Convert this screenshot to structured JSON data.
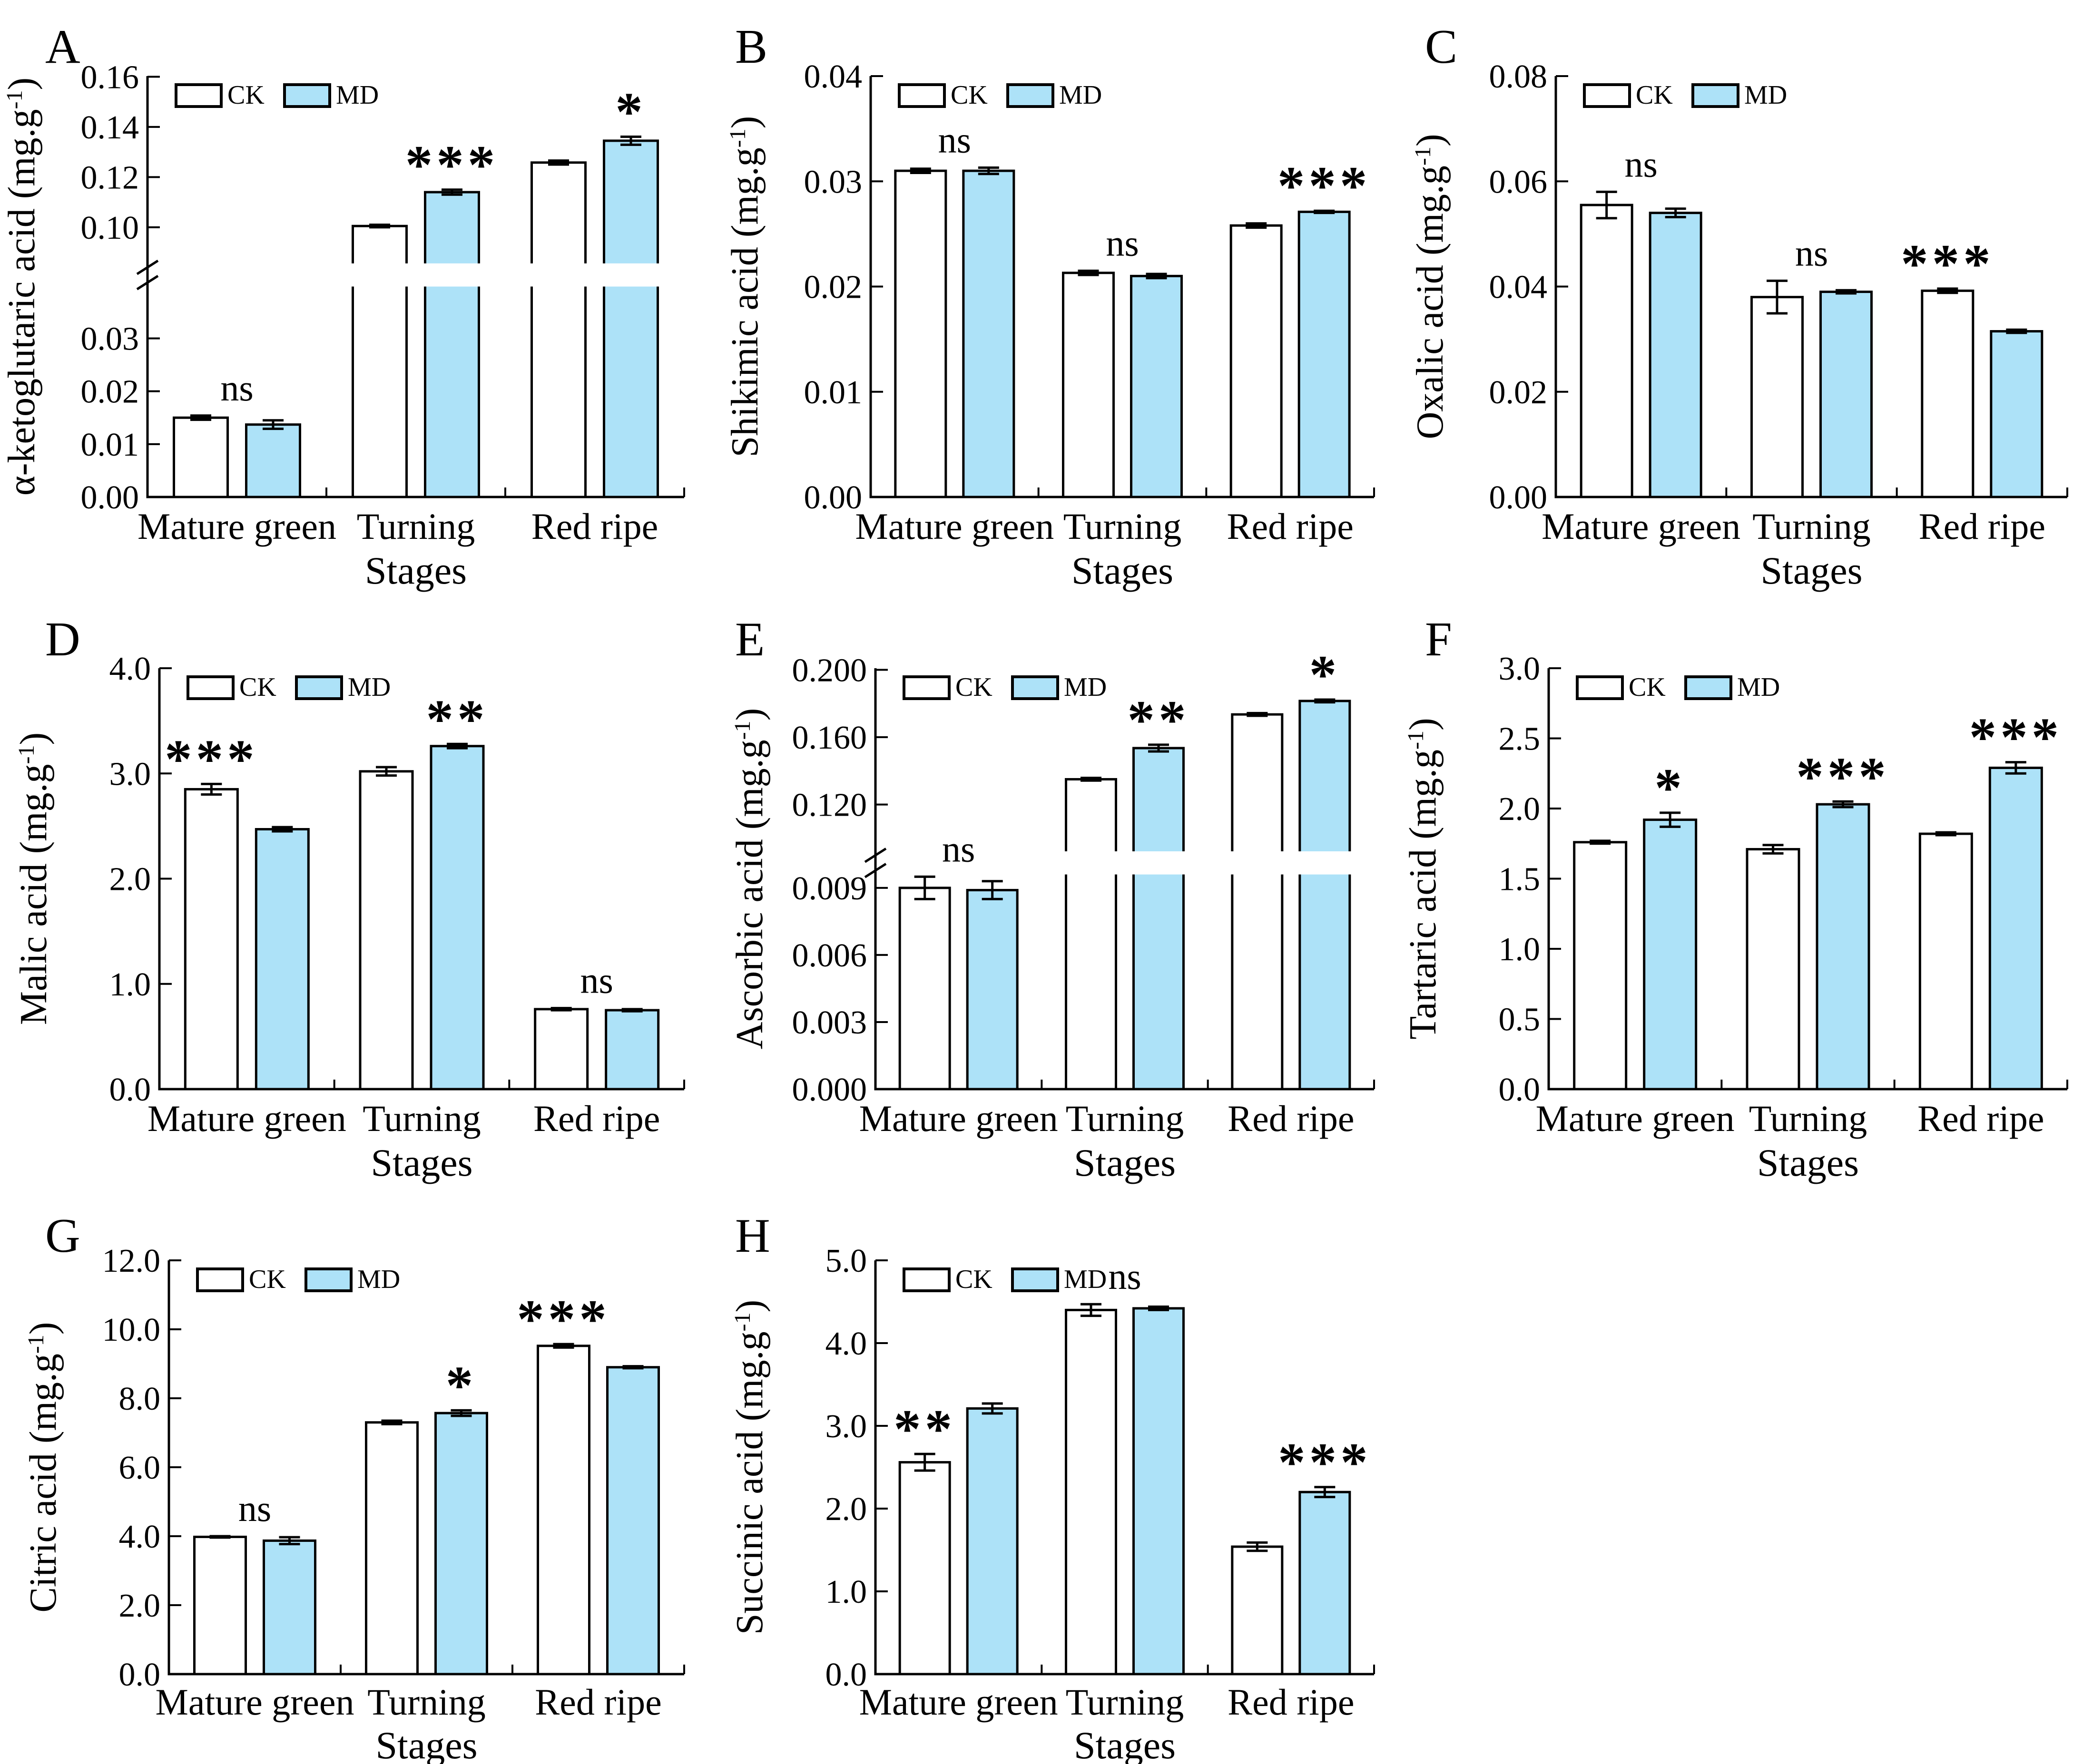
{
  "figure": {
    "legend": {
      "ck": "CK",
      "md": "MD"
    },
    "xlabel": "Stages",
    "categories": [
      "Mature green",
      "Turning",
      "Red ripe"
    ],
    "unit": {
      "pre": "(mg.g",
      "sup": "-1",
      "post": ")"
    },
    "colors": {
      "ck_fill": "#FFFFFF",
      "md_fill": "#ADE2F8",
      "stroke": "#000000"
    }
  },
  "chart_data": [
    {
      "type": "bar",
      "letter": "A",
      "ylabel": "α-ketoglutaric acid",
      "categories": [
        "Mature green",
        "Turning",
        "Red ripe"
      ],
      "series": [
        {
          "name": "CK",
          "values": [
            0.015,
            0.1005,
            0.1258
          ],
          "errors": [
            0.0004,
            0.0005,
            0.0008
          ]
        },
        {
          "name": "MD",
          "values": [
            0.0137,
            0.114,
            0.1345
          ],
          "errors": [
            0.0008,
            0.001,
            0.0016
          ]
        }
      ],
      "significance": [
        {
          "label": "ns",
          "anchor": "pair"
        },
        {
          "label": "***",
          "anchor": "md"
        },
        {
          "label": "*",
          "anchor": "md"
        }
      ],
      "axis": {
        "broken": true,
        "lower": {
          "vmax": 0.0398,
          "fmax": 0.5,
          "ticks": [
            [
              "0.00",
              0
            ],
            [
              "0.01",
              0.01
            ],
            [
              "0.02",
              0.02
            ],
            [
              "0.03",
              0.03
            ]
          ]
        },
        "gap": [
          0.5,
          0.555
        ],
        "upper": {
          "vmin": 0.0856,
          "f0": 0.555,
          "scale": 5.96,
          "ticks": [
            [
              "0.10",
              0.1
            ],
            [
              "0.12",
              0.12
            ],
            [
              "0.14",
              0.14
            ],
            [
              "0.16",
              0.16
            ]
          ]
        }
      }
    },
    {
      "type": "bar",
      "letter": "B",
      "ylabel": "Shikimic acid",
      "categories": [
        "Mature green",
        "Turning",
        "Red ripe"
      ],
      "series": [
        {
          "name": "CK",
          "values": [
            0.031,
            0.0213,
            0.0258
          ],
          "errors": [
            0.0002,
            0.0002,
            0.0002
          ]
        },
        {
          "name": "MD",
          "values": [
            0.031,
            0.021,
            0.0271
          ],
          "errors": [
            0.0003,
            0.0002,
            0.0001
          ]
        }
      ],
      "significance": [
        {
          "label": "ns",
          "anchor": "pair"
        },
        {
          "label": "ns",
          "anchor": "pair"
        },
        {
          "label": "***",
          "anchor": "md"
        }
      ],
      "axis": {
        "broken": false,
        "vmax": 0.04,
        "ticks": [
          [
            "0.00",
            0
          ],
          [
            "0.01",
            0.01
          ],
          [
            "0.02",
            0.02
          ],
          [
            "0.03",
            0.03
          ],
          [
            "0.04",
            0.04
          ]
        ]
      }
    },
    {
      "type": "bar",
      "letter": "C",
      "ylabel": "Oxalic acid",
      "categories": [
        "Mature green",
        "Turning",
        "Red ripe"
      ],
      "series": [
        {
          "name": "CK",
          "values": [
            0.0555,
            0.038,
            0.0392
          ],
          "errors": [
            0.0025,
            0.0031,
            0.0004
          ]
        },
        {
          "name": "MD",
          "values": [
            0.054,
            0.039,
            0.0315
          ],
          "errors": [
            0.0008,
            0.0003,
            0.0003
          ]
        }
      ],
      "significance": [
        {
          "label": "ns",
          "anchor": "pair"
        },
        {
          "label": "ns",
          "anchor": "pair"
        },
        {
          "label": "***",
          "anchor": "ck"
        }
      ],
      "axis": {
        "broken": false,
        "vmax": 0.08,
        "ticks": [
          [
            "0.00",
            0
          ],
          [
            "0.02",
            0.02
          ],
          [
            "0.04",
            0.04
          ],
          [
            "0.06",
            0.06
          ],
          [
            "0.08",
            0.08
          ]
        ]
      }
    },
    {
      "type": "bar",
      "letter": "D",
      "ylabel": "Malic acid",
      "categories": [
        "Mature green",
        "Turning",
        "Red ripe"
      ],
      "series": [
        {
          "name": "CK",
          "values": [
            2.85,
            3.02,
            0.76
          ],
          "errors": [
            0.05,
            0.04,
            0.01
          ]
        },
        {
          "name": "MD",
          "values": [
            2.47,
            3.26,
            0.75
          ],
          "errors": [
            0.02,
            0.02,
            0.01
          ]
        }
      ],
      "significance": [
        {
          "label": "***",
          "anchor": "ck"
        },
        {
          "label": "**",
          "anchor": "md"
        },
        {
          "label": "ns",
          "anchor": "pair"
        }
      ],
      "axis": {
        "broken": false,
        "vmax": 4.0,
        "ticks": [
          [
            "0.0",
            0
          ],
          [
            "1.0",
            1
          ],
          [
            "2.0",
            2
          ],
          [
            "3.0",
            3
          ],
          [
            "4.0",
            4
          ]
        ]
      }
    },
    {
      "type": "bar",
      "letter": "E",
      "ylabel": "Ascorbic acid",
      "categories": [
        "Mature green",
        "Turning",
        "Red ripe"
      ],
      "series": [
        {
          "name": "CK",
          "values": [
            0.009,
            0.135,
            0.1735
          ],
          "errors": [
            0.0005,
            0.0008,
            0.0008
          ]
        },
        {
          "name": "MD",
          "values": [
            0.0089,
            0.1535,
            0.1815
          ],
          "errors": [
            0.0004,
            0.002,
            0.0008
          ]
        }
      ],
      "significance": [
        {
          "label": "ns",
          "anchor": "pair"
        },
        {
          "label": "**",
          "anchor": "md"
        },
        {
          "label": "*",
          "anchor": "md"
        }
      ],
      "axis": {
        "broken": true,
        "lower": {
          "vmax": 0.0096,
          "fmax": 0.51,
          "ticks": [
            [
              "0.000",
              0
            ],
            [
              "0.003",
              0.003
            ],
            [
              "0.006",
              0.006
            ],
            [
              "0.009",
              0.009
            ]
          ]
        },
        "gap": [
          0.51,
          0.565
        ],
        "upper": {
          "vmin": 0.0922,
          "f0": 0.565,
          "scale": 4.0,
          "ticks": [
            [
              "0.120",
              0.12
            ],
            [
              "0.160",
              0.16
            ],
            [
              "0.200",
              0.2
            ]
          ]
        }
      }
    },
    {
      "type": "bar",
      "letter": "F",
      "ylabel": "Tartaric acid",
      "categories": [
        "Mature green",
        "Turning",
        "Red ripe"
      ],
      "series": [
        {
          "name": "CK",
          "values": [
            1.76,
            1.71,
            1.82
          ],
          "errors": [
            0.01,
            0.03,
            0.01
          ]
        },
        {
          "name": "MD",
          "values": [
            1.92,
            2.03,
            2.29
          ],
          "errors": [
            0.05,
            0.02,
            0.04
          ]
        }
      ],
      "significance": [
        {
          "label": "*",
          "anchor": "md"
        },
        {
          "label": "***",
          "anchor": "md"
        },
        {
          "label": "***",
          "anchor": "md"
        }
      ],
      "axis": {
        "broken": false,
        "vmax": 3.0,
        "ticks": [
          [
            "0.0",
            0
          ],
          [
            "0.5",
            0.5
          ],
          [
            "1.0",
            1
          ],
          [
            "1.5",
            1.5
          ],
          [
            "2.0",
            2
          ],
          [
            "2.5",
            2.5
          ],
          [
            "3.0",
            3
          ]
        ]
      }
    },
    {
      "type": "bar",
      "letter": "G",
      "ylabel": "Citric acid",
      "categories": [
        "Mature green",
        "Turning",
        "Red ripe"
      ],
      "series": [
        {
          "name": "CK",
          "values": [
            3.98,
            7.3,
            9.52
          ],
          "errors": [
            0.02,
            0.05,
            0.05
          ]
        },
        {
          "name": "MD",
          "values": [
            3.87,
            7.57,
            8.9
          ],
          "errors": [
            0.1,
            0.08,
            0.03
          ]
        }
      ],
      "significance": [
        {
          "label": "ns",
          "anchor": "pair"
        },
        {
          "label": "*",
          "anchor": "md"
        },
        {
          "label": "***",
          "anchor": "ck"
        }
      ],
      "axis": {
        "broken": false,
        "vmax": 12.0,
        "ticks": [
          [
            "0.0",
            0
          ],
          [
            "2.0",
            2
          ],
          [
            "4.0",
            4
          ],
          [
            "6.0",
            6
          ],
          [
            "8.0",
            8
          ],
          [
            "10.0",
            10
          ],
          [
            "12.0",
            12
          ]
        ]
      }
    },
    {
      "type": "bar",
      "letter": "H",
      "ylabel": "Succinic acid",
      "categories": [
        "Mature green",
        "Turning",
        "Red ripe"
      ],
      "series": [
        {
          "name": "CK",
          "values": [
            2.56,
            4.4,
            1.54
          ],
          "errors": [
            0.1,
            0.07,
            0.05
          ]
        },
        {
          "name": "MD",
          "values": [
            3.21,
            4.42,
            2.2
          ],
          "errors": [
            0.06,
            0.02,
            0.06
          ]
        }
      ],
      "significance": [
        {
          "label": "**",
          "anchor": "ck"
        },
        {
          "label": "ns",
          "anchor": "pair"
        },
        {
          "label": "***",
          "anchor": "md"
        }
      ],
      "axis": {
        "broken": false,
        "vmax": 5.0,
        "ticks": [
          [
            "0.0",
            0
          ],
          [
            "1.0",
            1
          ],
          [
            "2.0",
            2
          ],
          [
            "3.0",
            3
          ],
          [
            "4.0",
            4
          ],
          [
            "5.0",
            5
          ]
        ]
      }
    }
  ]
}
